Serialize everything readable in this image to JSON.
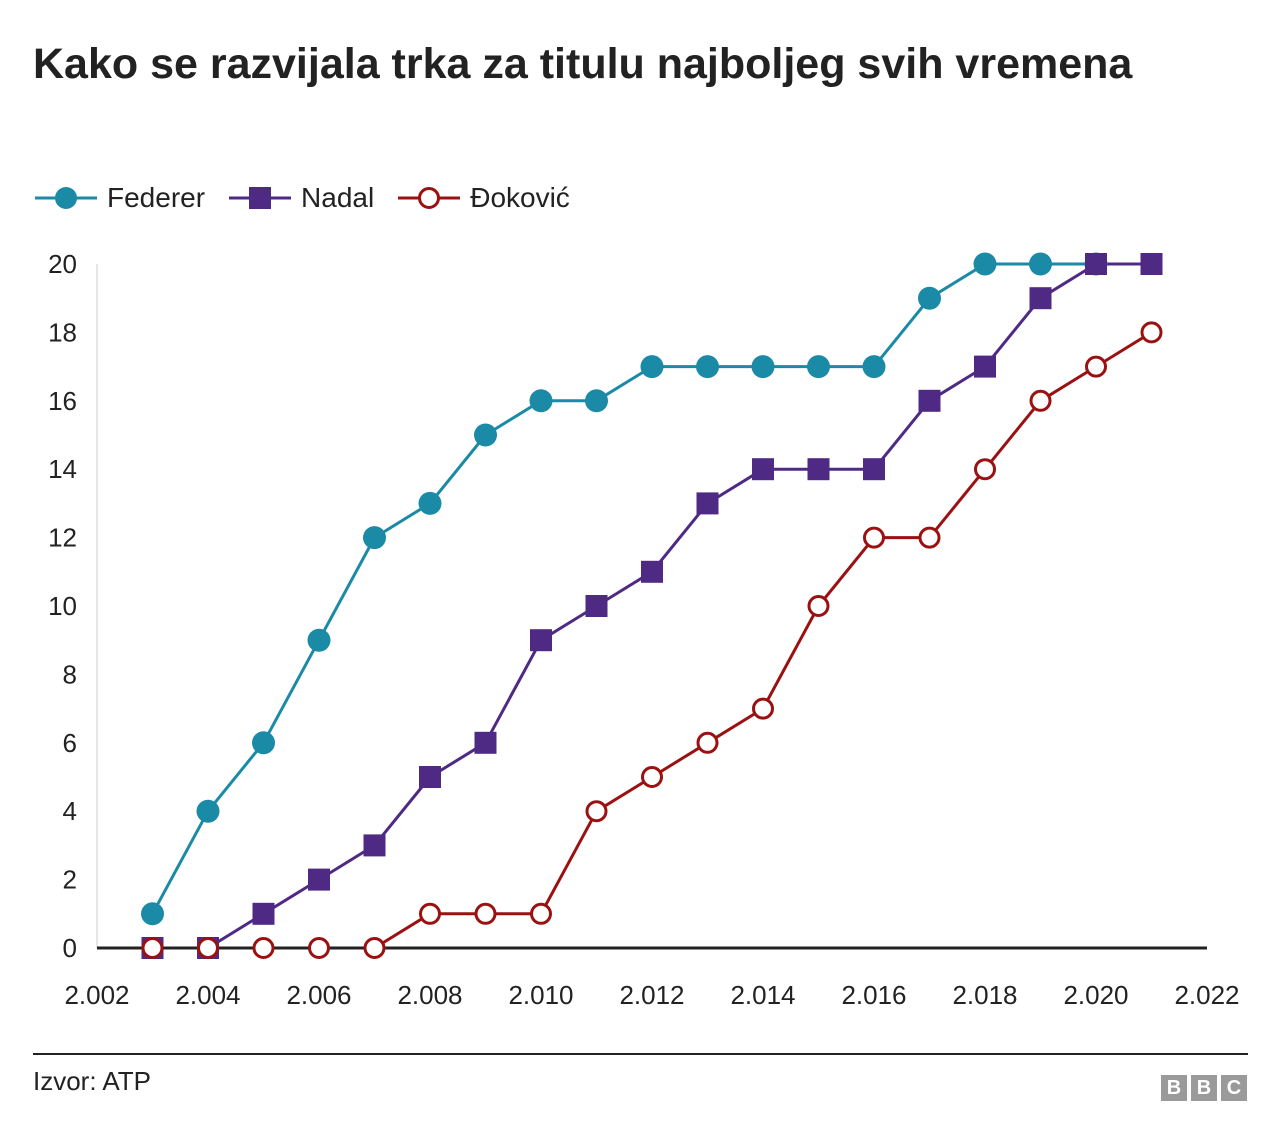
{
  "colors": {
    "federer": "#1a8aa6",
    "nadal": "#4e2a84",
    "djokovic": "#9b1111",
    "axis": "#222222",
    "text": "#222222",
    "logo": "#9a9a9a"
  },
  "chart_data": {
    "type": "line",
    "title": "Kako se razvijala trka za titulu najboljeg svih vremena",
    "xlabel": "",
    "ylabel": "",
    "xlim": [
      2002,
      2022
    ],
    "ylim": [
      0,
      20
    ],
    "x_ticks": [
      "2.002",
      "2.004",
      "2.006",
      "2.008",
      "2.010",
      "2.012",
      "2.014",
      "2.016",
      "2.018",
      "2.020",
      "2.022"
    ],
    "y_ticks": [
      "0",
      "2",
      "4",
      "6",
      "8",
      "10",
      "12",
      "14",
      "16",
      "18",
      "20"
    ],
    "grid": false,
    "legend_position": "top-left",
    "x": [
      2003,
      2004,
      2005,
      2006,
      2007,
      2008,
      2009,
      2010,
      2011,
      2012,
      2013,
      2014,
      2015,
      2016,
      2017,
      2018,
      2019,
      2020,
      2021
    ],
    "series": [
      {
        "name": "Federer",
        "color": "#1a8aa6",
        "marker": "filled-circle",
        "values": [
          1,
          4,
          6,
          9,
          12,
          13,
          15,
          16,
          16,
          17,
          17,
          17,
          17,
          17,
          19,
          20,
          20,
          20,
          null
        ]
      },
      {
        "name": "Nadal",
        "color": "#4e2a84",
        "marker": "filled-square",
        "values": [
          0,
          0,
          1,
          2,
          3,
          5,
          6,
          9,
          10,
          11,
          13,
          14,
          14,
          14,
          16,
          17,
          19,
          20,
          20
        ]
      },
      {
        "name": "Đoković",
        "color": "#9b1111",
        "marker": "hollow-circle",
        "values": [
          0,
          0,
          0,
          0,
          0,
          1,
          1,
          1,
          4,
          5,
          6,
          7,
          10,
          12,
          12,
          14,
          16,
          17,
          18
        ]
      }
    ]
  },
  "footer": {
    "source": "Izvor: ATP",
    "logo": [
      "B",
      "B",
      "C"
    ]
  }
}
